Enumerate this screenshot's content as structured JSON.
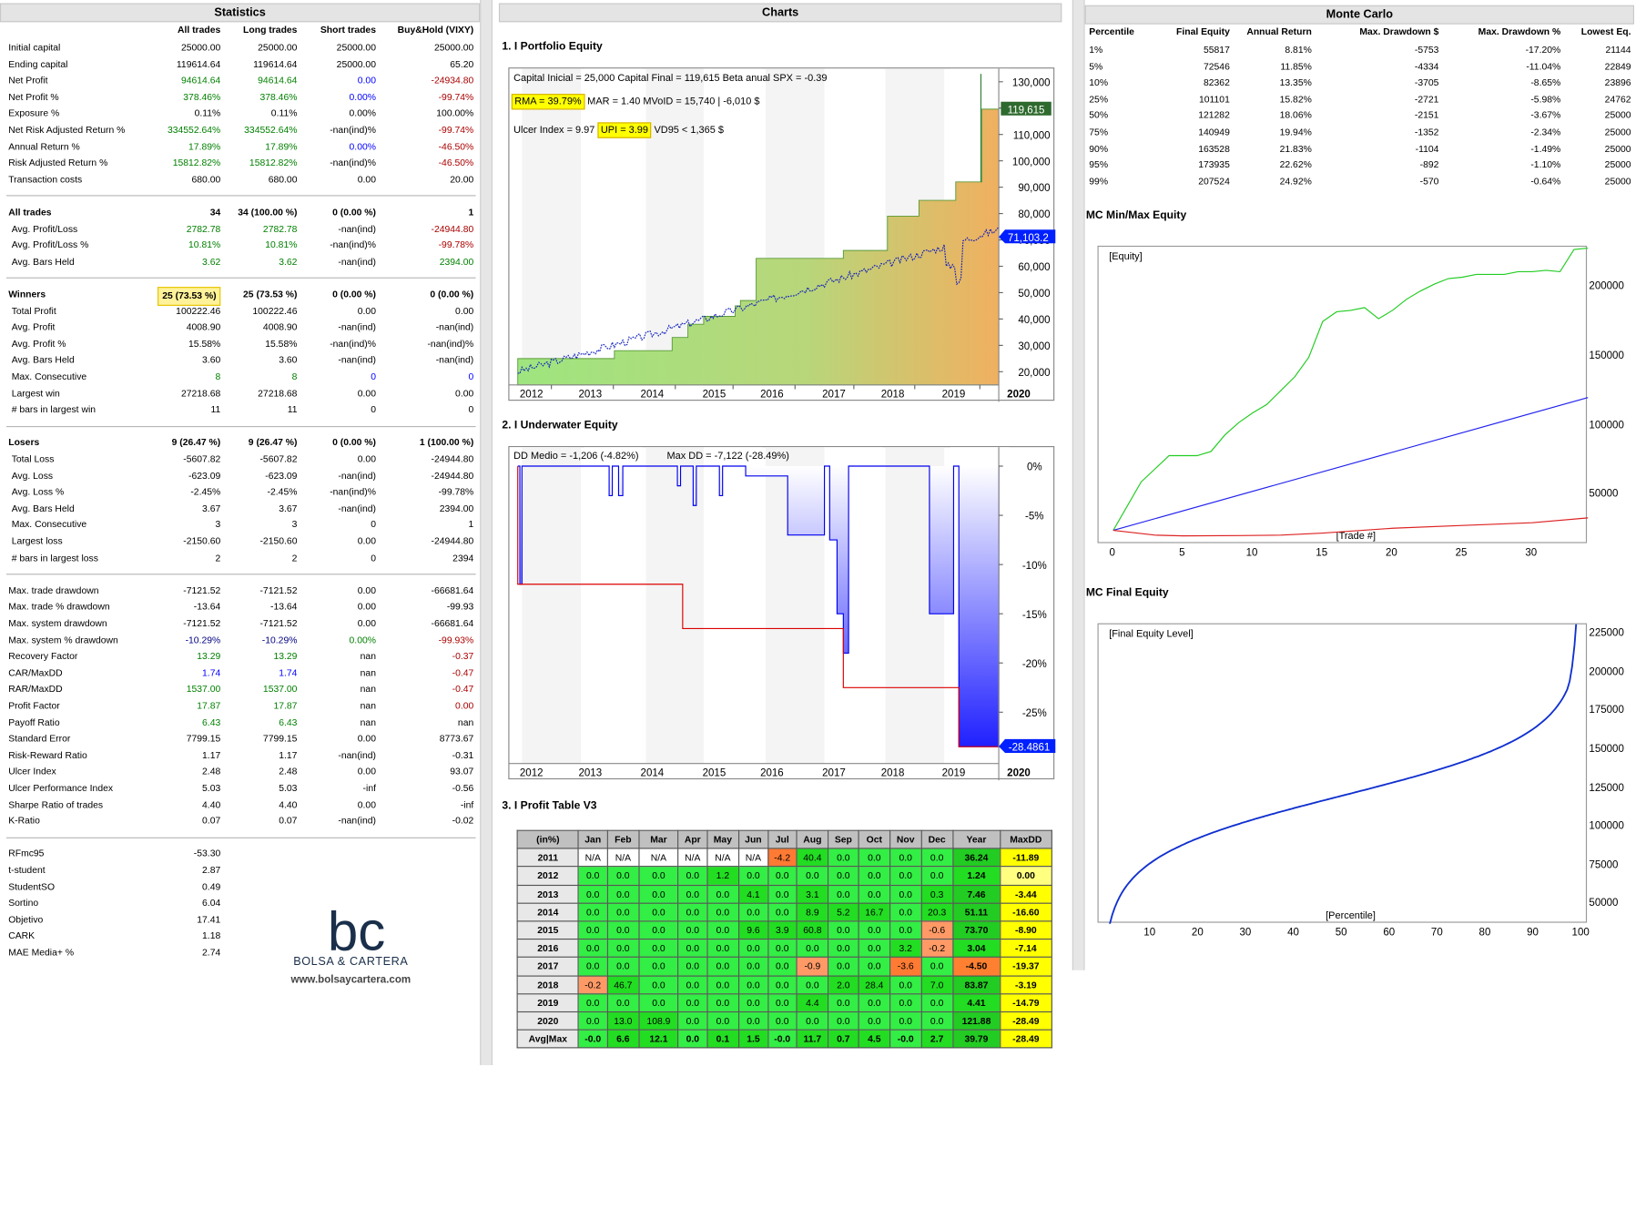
{
  "statistics": {
    "title": "Statistics",
    "columns": [
      "All trades",
      "Long trades",
      "Short trades",
      "Buy&Hold (VIXY)"
    ],
    "rows": [
      {
        "label": "Initial capital",
        "v": [
          "25000.00",
          "25000.00",
          "25000.00",
          "25000.00"
        ],
        "c": [
          "",
          "",
          "",
          ""
        ]
      },
      {
        "label": "Ending capital",
        "v": [
          "119614.64",
          "119614.64",
          "25000.00",
          "65.20"
        ],
        "c": [
          "",
          "",
          "",
          ""
        ]
      },
      {
        "label": "Net Profit",
        "v": [
          "94614.64",
          "94614.64",
          "0.00",
          "-24934.80"
        ],
        "c": [
          "g",
          "g",
          "bl",
          "r"
        ]
      },
      {
        "label": "Net Profit %",
        "v": [
          "378.46%",
          "378.46%",
          "0.00%",
          "-99.74%"
        ],
        "c": [
          "g",
          "g",
          "bl",
          "r"
        ]
      },
      {
        "label": "Exposure %",
        "v": [
          "0.11%",
          "0.11%",
          "0.00%",
          "100.00%"
        ],
        "c": [
          "",
          "",
          "",
          ""
        ]
      },
      {
        "label": "Net Risk Adjusted Return %",
        "v": [
          "334552.64%",
          "334552.64%",
          "-nan(ind)%",
          "-99.74%"
        ],
        "c": [
          "g",
          "g",
          "",
          "r"
        ]
      },
      {
        "label": "Annual Return %",
        "v": [
          "17.89%",
          "17.89%",
          "0.00%",
          "-46.50%"
        ],
        "c": [
          "g",
          "g",
          "bl",
          "r"
        ]
      },
      {
        "label": "Risk Adjusted Return %",
        "v": [
          "15812.82%",
          "15812.82%",
          "-nan(ind)%",
          "-46.50%"
        ],
        "c": [
          "g",
          "g",
          "",
          "r"
        ]
      },
      {
        "label": "Transaction costs",
        "v": [
          "680.00",
          "680.00",
          "0.00",
          "20.00"
        ],
        "c": [
          "",
          "",
          "",
          ""
        ]
      },
      {
        "sep": true
      },
      {
        "label": "All trades",
        "v": [
          "34",
          "34 (100.00 %)",
          "0 (0.00 %)",
          "1"
        ],
        "c": [
          "",
          "",
          "",
          ""
        ],
        "bold": true
      },
      {
        "label": "Avg. Profit/Loss",
        "v": [
          "2782.78",
          "2782.78",
          "-nan(ind)",
          "-24944.80"
        ],
        "c": [
          "g",
          "g",
          "",
          "r"
        ],
        "ind": true
      },
      {
        "label": "Avg. Profit/Loss %",
        "v": [
          "10.81%",
          "10.81%",
          "-nan(ind)%",
          "-99.78%"
        ],
        "c": [
          "g",
          "g",
          "",
          "r"
        ],
        "ind": true
      },
      {
        "label": "Avg. Bars Held",
        "v": [
          "3.62",
          "3.62",
          "-nan(ind)",
          "2394.00"
        ],
        "c": [
          "g",
          "g",
          "",
          "g"
        ],
        "ind": true
      },
      {
        "sep": true
      },
      {
        "label": "Winners",
        "v": [
          "25 (73.53 %)",
          "25 (73.53 %)",
          "0 (0.00 %)",
          "0 (0.00 %)"
        ],
        "c": [
          "",
          "",
          "",
          ""
        ],
        "bold": true,
        "hl": true
      },
      {
        "label": "Total Profit",
        "v": [
          "100222.46",
          "100222.46",
          "0.00",
          "0.00"
        ],
        "c": [
          "",
          "",
          "",
          ""
        ],
        "ind": true
      },
      {
        "label": "Avg. Profit",
        "v": [
          "4008.90",
          "4008.90",
          "-nan(ind)",
          "-nan(ind)"
        ],
        "c": [
          "",
          "",
          "",
          ""
        ],
        "ind": true
      },
      {
        "label": "Avg. Profit %",
        "v": [
          "15.58%",
          "15.58%",
          "-nan(ind)%",
          "-nan(ind)%"
        ],
        "c": [
          "",
          "",
          "",
          ""
        ],
        "ind": true
      },
      {
        "label": "Avg. Bars Held",
        "v": [
          "3.60",
          "3.60",
          "-nan(ind)",
          "-nan(ind)"
        ],
        "c": [
          "",
          "",
          "",
          ""
        ],
        "ind": true
      },
      {
        "label": "Max. Consecutive",
        "v": [
          "8",
          "8",
          "0",
          "0"
        ],
        "c": [
          "g",
          "g",
          "bl",
          "bl"
        ],
        "ind": true
      },
      {
        "label": "Largest win",
        "v": [
          "27218.68",
          "27218.68",
          "0.00",
          "0.00"
        ],
        "c": [
          "",
          "",
          "",
          ""
        ],
        "ind": true
      },
      {
        "label": "# bars in largest win",
        "v": [
          "11",
          "11",
          "0",
          "0"
        ],
        "c": [
          "",
          "",
          "",
          ""
        ],
        "ind": true
      },
      {
        "sep": true
      },
      {
        "label": "Losers",
        "v": [
          "9 (26.47 %)",
          "9 (26.47 %)",
          "0 (0.00 %)",
          "1 (100.00 %)"
        ],
        "c": [
          "",
          "",
          "",
          ""
        ],
        "bold": true
      },
      {
        "label": "Total Loss",
        "v": [
          "-5607.82",
          "-5607.82",
          "0.00",
          "-24944.80"
        ],
        "c": [
          "",
          "",
          "",
          ""
        ],
        "ind": true
      },
      {
        "label": "Avg. Loss",
        "v": [
          "-623.09",
          "-623.09",
          "-nan(ind)",
          "-24944.80"
        ],
        "c": [
          "",
          "",
          "",
          ""
        ],
        "ind": true
      },
      {
        "label": "Avg. Loss %",
        "v": [
          "-2.45%",
          "-2.45%",
          "-nan(ind)%",
          "-99.78%"
        ],
        "c": [
          "",
          "",
          "",
          ""
        ],
        "ind": true
      },
      {
        "label": "Avg. Bars Held",
        "v": [
          "3.67",
          "3.67",
          "-nan(ind)",
          "2394.00"
        ],
        "c": [
          "",
          "",
          "",
          ""
        ],
        "ind": true
      },
      {
        "label": "Max. Consecutive",
        "v": [
          "3",
          "3",
          "0",
          "1"
        ],
        "c": [
          "",
          "",
          "",
          ""
        ],
        "ind": true
      },
      {
        "label": "Largest loss",
        "v": [
          "-2150.60",
          "-2150.60",
          "0.00",
          "-24944.80"
        ],
        "c": [
          "",
          "",
          "",
          ""
        ],
        "ind": true
      },
      {
        "label": "# bars in largest loss",
        "v": [
          "2",
          "2",
          "0",
          "2394"
        ],
        "c": [
          "",
          "",
          "",
          ""
        ],
        "ind": true
      },
      {
        "sep": true
      },
      {
        "label": "Max. trade drawdown",
        "v": [
          "-7121.52",
          "-7121.52",
          "0.00",
          "-66681.64"
        ],
        "c": [
          "",
          "",
          "",
          ""
        ]
      },
      {
        "label": "Max. trade % drawdown",
        "v": [
          "-13.64",
          "-13.64",
          "0.00",
          "-99.93"
        ],
        "c": [
          "",
          "",
          "",
          ""
        ]
      },
      {
        "label": "Max. system drawdown",
        "v": [
          "-7121.52",
          "-7121.52",
          "0.00",
          "-66681.64"
        ],
        "c": [
          "",
          "",
          "",
          ""
        ]
      },
      {
        "label": "Max. system % drawdown",
        "v": [
          "-10.29%",
          "-10.29%",
          "0.00%",
          "-99.93%"
        ],
        "c": [
          "nv",
          "nv",
          "g",
          "r"
        ]
      },
      {
        "label": "Recovery Factor",
        "v": [
          "13.29",
          "13.29",
          "nan",
          "-0.37"
        ],
        "c": [
          "g",
          "g",
          "",
          "r"
        ]
      },
      {
        "label": "CAR/MaxDD",
        "v": [
          "1.74",
          "1.74",
          "nan",
          "-0.47"
        ],
        "c": [
          "bl",
          "bl",
          "",
          "r"
        ]
      },
      {
        "label": "RAR/MaxDD",
        "v": [
          "1537.00",
          "1537.00",
          "nan",
          "-0.47"
        ],
        "c": [
          "g",
          "g",
          "",
          "r"
        ]
      },
      {
        "label": "Profit Factor",
        "v": [
          "17.87",
          "17.87",
          "nan",
          "0.00"
        ],
        "c": [
          "g",
          "g",
          "",
          "r"
        ]
      },
      {
        "label": "Payoff Ratio",
        "v": [
          "6.43",
          "6.43",
          "nan",
          "nan"
        ],
        "c": [
          "g",
          "g",
          "",
          ""
        ]
      },
      {
        "label": "Standard Error",
        "v": [
          "7799.15",
          "7799.15",
          "0.00",
          "8773.67"
        ],
        "c": [
          "",
          "",
          "",
          ""
        ]
      },
      {
        "label": "Risk-Reward Ratio",
        "v": [
          "1.17",
          "1.17",
          "-nan(ind)",
          "-0.31"
        ],
        "c": [
          "",
          "",
          "",
          ""
        ]
      },
      {
        "label": "Ulcer Index",
        "v": [
          "2.48",
          "2.48",
          "0.00",
          "93.07"
        ],
        "c": [
          "",
          "",
          "",
          ""
        ]
      },
      {
        "label": "Ulcer Performance Index",
        "v": [
          "5.03",
          "5.03",
          "-inf",
          "-0.56"
        ],
        "c": [
          "",
          "",
          "",
          ""
        ]
      },
      {
        "label": "Sharpe Ratio of trades",
        "v": [
          "4.40",
          "4.40",
          "0.00",
          "-inf"
        ],
        "c": [
          "",
          "",
          "",
          ""
        ]
      },
      {
        "label": "K-Ratio",
        "v": [
          "0.07",
          "0.07",
          "-nan(ind)",
          "-0.02"
        ],
        "c": [
          "",
          "",
          "",
          ""
        ]
      },
      {
        "sep": true
      },
      {
        "label": "RFmc95",
        "v": [
          "-53.30",
          "",
          "",
          ""
        ],
        "c": [
          "",
          "",
          "",
          ""
        ]
      },
      {
        "label": "t-student",
        "v": [
          "2.87",
          "",
          "",
          ""
        ],
        "c": [
          "",
          "",
          "",
          ""
        ]
      },
      {
        "label": "StudentSO",
        "v": [
          "0.49",
          "",
          "",
          ""
        ],
        "c": [
          "",
          "",
          "",
          ""
        ]
      },
      {
        "label": "Sortino",
        "v": [
          "6.04",
          "",
          "",
          ""
        ],
        "c": [
          "",
          "",
          "",
          ""
        ]
      },
      {
        "label": "Objetivo",
        "v": [
          "17.41",
          "",
          "",
          ""
        ],
        "c": [
          "",
          "",
          "",
          ""
        ]
      },
      {
        "label": "CARK",
        "v": [
          "1.18",
          "",
          "",
          ""
        ],
        "c": [
          "",
          "",
          "",
          ""
        ]
      },
      {
        "label": "MAE Media+ %",
        "v": [
          "2.74",
          "",
          "",
          ""
        ],
        "c": [
          "",
          "",
          "",
          ""
        ]
      }
    ]
  },
  "logo": {
    "mark": "bc",
    "name": "BOLSA & CARTERA",
    "url": "www.bolsaycartera.com"
  },
  "charts": {
    "title": "Charts",
    "equity": {
      "heading": "1. I Portfolio Equity",
      "line1": "Capital Inicial = 25,000  Capital Final = 119,615   Beta anual SPX = -0.39",
      "rma": "RMA = 39.79%",
      "line2b": "MAR = 1.40   MVoID = 15,740 | -6,010 $",
      "line3a": "Ulcer Index = 9.97",
      "upi": "UPI = 3.99",
      "line3b": "VD95 < 1,365 $",
      "last_equity": "119,615",
      "last_bench": "71,103.2",
      "yticks": [
        "130,000",
        "120,000",
        "110,000",
        "100,000",
        "90,000",
        "80,000",
        "70,000",
        "60,000",
        "50,000",
        "40,000",
        "30,000",
        "20,000"
      ],
      "xticks": [
        "2012",
        "2013",
        "2014",
        "2015",
        "2016",
        "2017",
        "2018",
        "2019",
        "2020"
      ]
    },
    "underwater": {
      "heading": "2. I Underwater Equity",
      "ann1": "DD Medio = -1,206 (-4.82%)",
      "ann2": "Max DD = -7,122 (-28.49%)",
      "yticks": [
        "0%",
        "-5%",
        "-10%",
        "-15%",
        "-20%",
        "-25%"
      ],
      "last": "-28.4861",
      "xticks": [
        "2012",
        "2013",
        "2014",
        "2015",
        "2016",
        "2017",
        "2018",
        "2019",
        "2020"
      ]
    },
    "profit_table": {
      "heading": "3. I Profit Table V3",
      "header": [
        "(in%)",
        "Jan",
        "Feb",
        "Mar",
        "Apr",
        "May",
        "Jun",
        "Jul",
        "Aug",
        "Sep",
        "Oct",
        "Nov",
        "Dec",
        "Year",
        "MaxDD"
      ],
      "rows": [
        [
          "2011",
          "N/A",
          "N/A",
          "N/A",
          "N/A",
          "N/A",
          "N/A",
          "-4.2",
          "40.4",
          "0.0",
          "0.0",
          "0.0",
          "0.0",
          "36.24",
          "-11.89"
        ],
        [
          "2012",
          "0.0",
          "0.0",
          "0.0",
          "0.0",
          "1.2",
          "0.0",
          "0.0",
          "0.0",
          "0.0",
          "0.0",
          "0.0",
          "0.0",
          "1.24",
          "0.00"
        ],
        [
          "2013",
          "0.0",
          "0.0",
          "0.0",
          "0.0",
          "0.0",
          "4.1",
          "0.0",
          "3.1",
          "0.0",
          "0.0",
          "0.0",
          "0.3",
          "7.46",
          "-3.44"
        ],
        [
          "2014",
          "0.0",
          "0.0",
          "0.0",
          "0.0",
          "0.0",
          "0.0",
          "0.0",
          "8.9",
          "5.2",
          "16.7",
          "0.0",
          "20.3",
          "51.11",
          "-16.60"
        ],
        [
          "2015",
          "0.0",
          "0.0",
          "0.0",
          "0.0",
          "0.0",
          "9.6",
          "3.9",
          "60.8",
          "0.0",
          "0.0",
          "0.0",
          "-0.6",
          "73.70",
          "-8.90"
        ],
        [
          "2016",
          "0.0",
          "0.0",
          "0.0",
          "0.0",
          "0.0",
          "0.0",
          "0.0",
          "0.0",
          "0.0",
          "0.0",
          "3.2",
          "-0.2",
          "3.04",
          "-7.14"
        ],
        [
          "2017",
          "0.0",
          "0.0",
          "0.0",
          "0.0",
          "0.0",
          "0.0",
          "0.0",
          "-0.9",
          "0.0",
          "0.0",
          "-3.6",
          "0.0",
          "-4.50",
          "-19.37"
        ],
        [
          "2018",
          "-0.2",
          "46.7",
          "0.0",
          "0.0",
          "0.0",
          "0.0",
          "0.0",
          "0.0",
          "2.0",
          "28.4",
          "0.0",
          "7.0",
          "83.87",
          "-3.19"
        ],
        [
          "2019",
          "0.0",
          "0.0",
          "0.0",
          "0.0",
          "0.0",
          "0.0",
          "0.0",
          "4.4",
          "0.0",
          "0.0",
          "0.0",
          "0.0",
          "4.41",
          "-14.79"
        ],
        [
          "2020",
          "0.0",
          "13.0",
          "108.9",
          "0.0",
          "0.0",
          "0.0",
          "0.0",
          "0.0",
          "0.0",
          "0.0",
          "0.0",
          "0.0",
          "121.88",
          "-28.49"
        ],
        [
          "Avg|Max",
          "-0.0",
          "6.6",
          "12.1",
          "0.0",
          "0.1",
          "1.5",
          "-0.0",
          "11.7",
          "0.7",
          "4.5",
          "-0.0",
          "2.7",
          "39.79",
          "-28.49"
        ]
      ]
    }
  },
  "montecarlo": {
    "title": "Monte Carlo",
    "columns": [
      "Percentile",
      "Final Equity",
      "Annual Return",
      "Max. Drawdown $",
      "Max. Drawdown %",
      "Lowest Eq."
    ],
    "rows": [
      [
        "1%",
        "55817",
        "8.81%",
        "-5753",
        "-17.20%",
        "21144"
      ],
      [
        "5%",
        "72546",
        "11.85%",
        "-4334",
        "-11.04%",
        "22849"
      ],
      [
        "10%",
        "82362",
        "13.35%",
        "-3705",
        "-8.65%",
        "23896"
      ],
      [
        "25%",
        "101101",
        "15.82%",
        "-2721",
        "-5.98%",
        "24762"
      ],
      [
        "50%",
        "121282",
        "18.06%",
        "-2151",
        "-3.67%",
        "25000"
      ],
      [
        "75%",
        "140949",
        "19.94%",
        "-1352",
        "-2.34%",
        "25000"
      ],
      [
        "90%",
        "163528",
        "21.83%",
        "-1104",
        "-1.49%",
        "25000"
      ],
      [
        "95%",
        "173935",
        "22.62%",
        "-892",
        "-1.10%",
        "25000"
      ],
      [
        "99%",
        "207524",
        "24.92%",
        "-570",
        "-0.64%",
        "25000"
      ]
    ],
    "minmax": {
      "heading": "MC Min/Max Equity",
      "label": "[Equity]",
      "xlabel": "[Trade #]",
      "yticks": [
        "200000",
        "150000",
        "100000",
        "50000"
      ],
      "xticks": [
        "0",
        "5",
        "10",
        "15",
        "20",
        "25",
        "30"
      ]
    },
    "final": {
      "heading": "MC Final Equity",
      "label": "[Final Equity Level]",
      "xlabel": "[Percentile]",
      "yticks": [
        "225000",
        "200000",
        "175000",
        "150000",
        "125000",
        "100000",
        "75000",
        "50000"
      ],
      "xticks": [
        "10",
        "20",
        "30",
        "40",
        "50",
        "60",
        "70",
        "80",
        "90",
        "100"
      ]
    }
  }
}
